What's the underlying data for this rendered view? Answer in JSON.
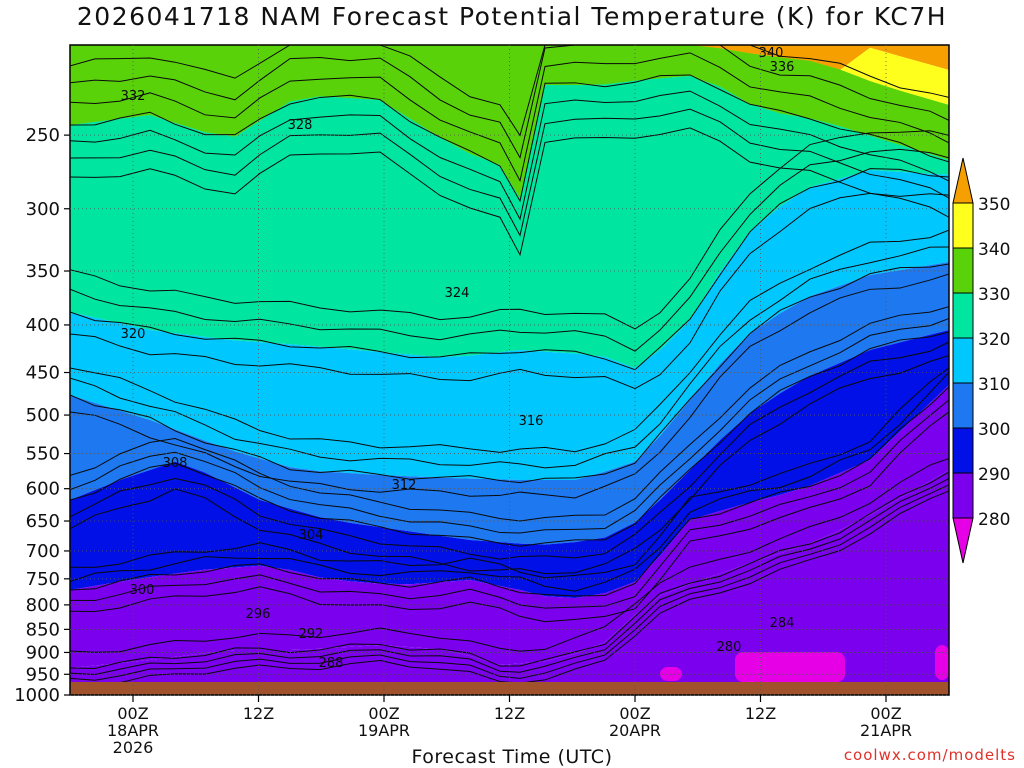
{
  "chart_data": {
    "type": "heatmap",
    "title": "2026041718 NAM Forecast Potential Temperature (K) for KC7H",
    "xlabel": "Forecast Time (UTC)",
    "ylabel": "",
    "y_axis": {
      "scale": "log",
      "range": [
        1000,
        200
      ],
      "ticks": [
        1000,
        950,
        900,
        850,
        800,
        750,
        700,
        650,
        600,
        550,
        500,
        450,
        400,
        350,
        300,
        250
      ],
      "tick_labels": [
        "1000",
        "950",
        "900",
        "850",
        "800",
        "750",
        "700",
        "650",
        "600",
        "550",
        "500",
        "450",
        "400",
        "350",
        "300",
        "250"
      ]
    },
    "x_axis": {
      "ticks": [
        {
          "label": "00Z",
          "sub": "18APR",
          "sub2": "2026"
        },
        {
          "label": "12Z",
          "sub": "",
          "sub2": ""
        },
        {
          "label": "00Z",
          "sub": "19APR",
          "sub2": ""
        },
        {
          "label": "12Z",
          "sub": "",
          "sub2": ""
        },
        {
          "label": "00Z",
          "sub": "20APR",
          "sub2": ""
        },
        {
          "label": "12Z",
          "sub": "",
          "sub2": ""
        },
        {
          "label": "00Z",
          "sub": "21APR",
          "sub2": ""
        }
      ]
    },
    "grid": true,
    "colorbar": {
      "placement": "right",
      "levels": [
        350,
        340,
        330,
        320,
        310,
        300,
        290,
        280
      ],
      "colors": [
        "#f5a000",
        "#ffff1e",
        "#5ad20a",
        "#00e6a0",
        "#00c8ff",
        "#1e78f0",
        "#0010e6",
        "#7a00ee",
        "#e600e6"
      ]
    },
    "contours": [
      {
        "label": "340",
        "color": "#0a0a0a"
      },
      {
        "label": "336",
        "color": "#0a0a0a"
      },
      {
        "label": "332",
        "color": "#0a0a0a"
      },
      {
        "label": "328",
        "color": "#0a0a0a"
      },
      {
        "label": "324",
        "color": "#0a0a0a"
      },
      {
        "label": "320",
        "color": "#0a0a0a"
      },
      {
        "label": "316",
        "color": "#0a0a0a"
      },
      {
        "label": "312",
        "color": "#0a0a0a"
      },
      {
        "label": "308",
        "color": "#0a0a0a"
      },
      {
        "label": "304",
        "color": "#0a0a0a"
      },
      {
        "label": "300",
        "color": "#0a0a0a"
      },
      {
        "label": "296",
        "color": "#0a0a0a"
      },
      {
        "label": "292",
        "color": "#0a0a0a"
      },
      {
        "label": "288",
        "color": "#0a0a0a"
      },
      {
        "label": "284",
        "color": "#0a0a0a"
      },
      {
        "label": "280",
        "color": "#0a0a0a"
      }
    ],
    "ground_color": "#a0522d"
  },
  "credit": "coolwx.com/modelts"
}
